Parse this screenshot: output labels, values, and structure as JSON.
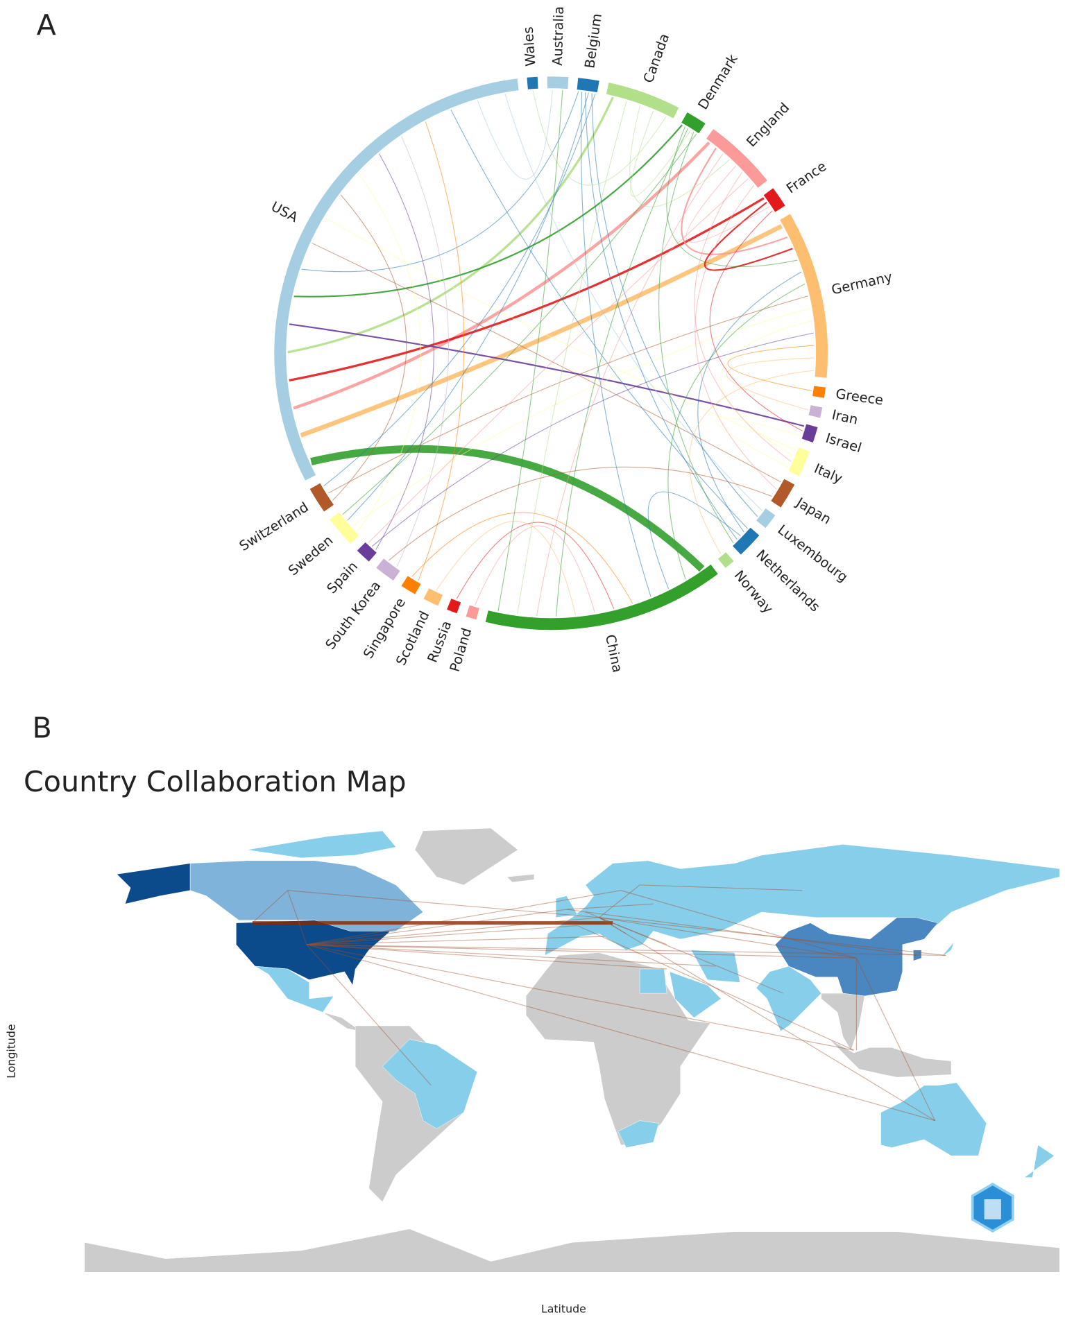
{
  "chart_data": [
    {
      "type": "chord",
      "panel": "A",
      "categories": [
        "Wales",
        "Australia",
        "Belgium",
        "Canada",
        "Denmark",
        "England",
        "France",
        "Germany",
        "Greece",
        "Iran",
        "Israel",
        "Italy",
        "Japan",
        "Luxembourg",
        "Netherlands",
        "Norway",
        "China",
        "Poland",
        "Russia",
        "Scotland",
        "Singapore",
        "South Korea",
        "Spain",
        "Sweden",
        "Switzerland",
        "USA"
      ],
      "values": [
        2,
        4,
        4,
        14,
        4,
        14,
        4,
        32,
        2,
        2,
        3,
        5,
        5,
        3,
        5,
        2,
        46,
        2,
        2,
        3,
        3,
        4,
        3,
        6,
        5,
        100
      ],
      "colors": [
        "#1f78b4",
        "#a6cee3",
        "#1f78b4",
        "#b2df8a",
        "#33a02c",
        "#fb9a99",
        "#e31a1c",
        "#fdbf6f",
        "#ff7f00",
        "#cab2d6",
        "#6a3d9a",
        "#ffff99",
        "#b15928",
        "#a6cee3",
        "#1f78b4",
        "#b2df8a",
        "#33a02c",
        "#fb9a99",
        "#e31a1c",
        "#fdbf6f",
        "#ff7f00",
        "#cab2d6",
        "#6a3d9a",
        "#ffff99",
        "#b15928",
        "#a6cee3"
      ],
      "links": [
        {
          "source": "USA",
          "target": "China",
          "value": 10
        },
        {
          "source": "USA",
          "target": "Germany",
          "value": 6
        },
        {
          "source": "USA",
          "target": "England",
          "value": 4
        },
        {
          "source": "USA",
          "target": "France",
          "value": 3
        },
        {
          "source": "USA",
          "target": "Canada",
          "value": 3
        },
        {
          "source": "USA",
          "target": "Israel",
          "value": 2
        },
        {
          "source": "USA",
          "target": "Denmark",
          "value": 2
        },
        {
          "source": "USA",
          "target": "Belgium",
          "value": 1
        },
        {
          "source": "USA",
          "target": "Japan",
          "value": 1
        },
        {
          "source": "USA",
          "target": "Italy",
          "value": 1
        },
        {
          "source": "USA",
          "target": "Switzerland",
          "value": 1
        },
        {
          "source": "USA",
          "target": "Sweden",
          "value": 1
        },
        {
          "source": "USA",
          "target": "Spain",
          "value": 1
        },
        {
          "source": "USA",
          "target": "South Korea",
          "value": 1
        },
        {
          "source": "USA",
          "target": "Singapore",
          "value": 1
        },
        {
          "source": "USA",
          "target": "Netherlands",
          "value": 1
        },
        {
          "source": "USA",
          "target": "Australia",
          "value": 1
        },
        {
          "source": "USA",
          "target": "Luxembourg",
          "value": 1
        },
        {
          "source": "Germany",
          "target": "England",
          "value": 2
        },
        {
          "source": "Germany",
          "target": "France",
          "value": 2
        },
        {
          "source": "Germany",
          "target": "Denmark",
          "value": 1
        },
        {
          "source": "Germany",
          "target": "Netherlands",
          "value": 1
        },
        {
          "source": "Germany",
          "target": "China",
          "value": 1
        },
        {
          "source": "Germany",
          "target": "Switzerland",
          "value": 1
        },
        {
          "source": "Germany",
          "target": "Sweden",
          "value": 1
        },
        {
          "source": "Germany",
          "target": "Italy",
          "value": 1
        },
        {
          "source": "Germany",
          "target": "Spain",
          "value": 1
        },
        {
          "source": "Germany",
          "target": "Greece",
          "value": 1
        },
        {
          "source": "China",
          "target": "Netherlands",
          "value": 1
        },
        {
          "source": "China",
          "target": "Belgium",
          "value": 1
        },
        {
          "source": "China",
          "target": "Singapore",
          "value": 1
        },
        {
          "source": "China",
          "target": "Russia",
          "value": 1
        },
        {
          "source": "China",
          "target": "Poland",
          "value": 1
        },
        {
          "source": "China",
          "target": "Scotland",
          "value": 1
        },
        {
          "source": "China",
          "target": "Denmark",
          "value": 1
        },
        {
          "source": "China",
          "target": "England",
          "value": 1
        },
        {
          "source": "China",
          "target": "Canada",
          "value": 1
        },
        {
          "source": "Netherlands",
          "target": "Belgium",
          "value": 1
        },
        {
          "source": "Sweden",
          "target": "Belgium",
          "value": 1
        },
        {
          "source": "Luxembourg",
          "target": "Belgium",
          "value": 1
        },
        {
          "source": "Switzerland",
          "target": "Belgium",
          "value": 1
        },
        {
          "source": "England",
          "target": "Canada",
          "value": 1
        },
        {
          "source": "Denmark",
          "target": "Canada",
          "value": 1
        },
        {
          "source": "Wales",
          "target": "Canada",
          "value": 1
        },
        {
          "source": "France",
          "target": "England",
          "value": 1
        },
        {
          "source": "Italy",
          "target": "England",
          "value": 1
        },
        {
          "source": "Spain",
          "target": "England",
          "value": 1
        },
        {
          "source": "Japan",
          "target": "England",
          "value": 1
        },
        {
          "source": "Israel",
          "target": "France",
          "value": 1
        },
        {
          "source": "Netherlands",
          "target": "Denmark",
          "value": 1
        },
        {
          "source": "Sweden",
          "target": "Denmark",
          "value": 1
        },
        {
          "source": "Israel",
          "target": "Italy",
          "value": 1
        },
        {
          "source": "South Korea",
          "target": "Japan",
          "value": 1
        },
        {
          "source": "Iran",
          "target": "Germany",
          "value": 1
        },
        {
          "source": "Norway",
          "target": "Germany",
          "value": 1
        },
        {
          "source": "Australia",
          "target": "China",
          "value": 1
        }
      ]
    },
    {
      "type": "map",
      "panel": "B",
      "title": "Country Collaboration Map",
      "xlabel": "Latitude",
      "ylabel": "Longitude"
    }
  ]
}
